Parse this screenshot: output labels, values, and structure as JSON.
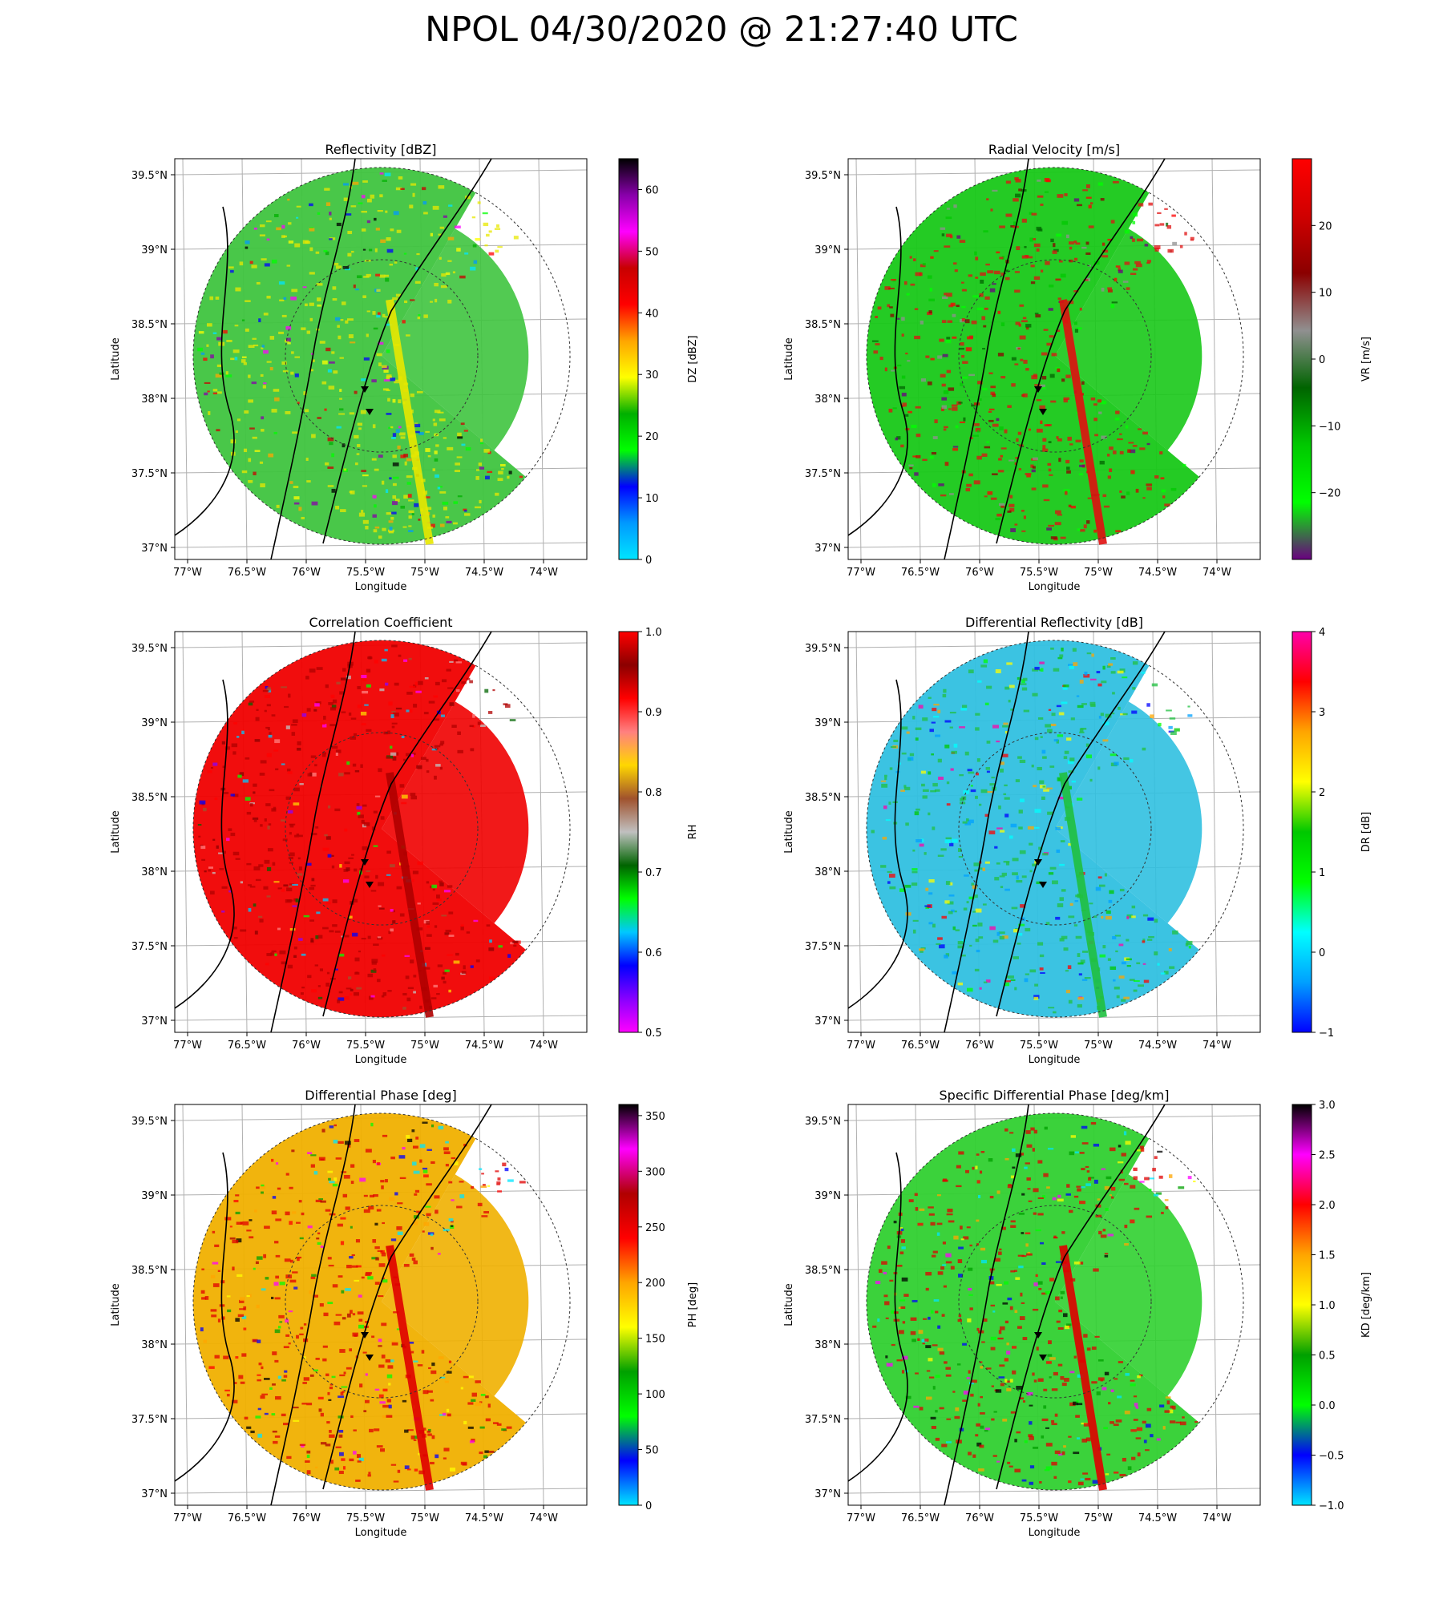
{
  "figure_title": "NPOL  04/30/2020 @ 21:27:40 UTC",
  "chart_data": [
    {
      "type": "heatmap",
      "title": "Reflectivity [dBZ]",
      "xlabel": "Longitude",
      "ylabel": "Latitude",
      "xticks": [
        "77°W",
        "76.5°W",
        "76°W",
        "75.5°W",
        "75°W",
        "74.5°W",
        "74°W"
      ],
      "yticks": [
        "39.5°N",
        "39°N",
        "38.5°N",
        "38°N",
        "37.5°N",
        "37°N"
      ],
      "colorbar_label": "DZ [dBZ]",
      "colorbar_ticks": [
        "0",
        "10",
        "20",
        "30",
        "40",
        "50",
        "60"
      ],
      "colorbar_range": [
        0,
        65
      ],
      "colormap": [
        "#00e5ff",
        "#0099ff",
        "#0000ff",
        "#00ff00",
        "#00b000",
        "#ffff00",
        "#ffa500",
        "#ff0000",
        "#c80000",
        "#ff00ff",
        "#8800aa",
        "#000000"
      ],
      "dominant_color": "#3fc43f",
      "accent_color": "#e8e800"
    },
    {
      "type": "heatmap",
      "title": "Radial Velocity [m/s]",
      "xlabel": "Longitude",
      "ylabel": "Latitude",
      "xticks": [
        "77°W",
        "76.5°W",
        "76°W",
        "75.5°W",
        "75°W",
        "74.5°W",
        "74°W"
      ],
      "yticks": [
        "39.5°N",
        "39°N",
        "38.5°N",
        "38°N",
        "37.5°N",
        "37°N"
      ],
      "colorbar_label": "VR [m/s]",
      "colorbar_ticks": [
        "−20",
        "−10",
        "0",
        "10",
        "20"
      ],
      "colorbar_range": [
        -30,
        30
      ],
      "colormap": [
        "#6a0080",
        "#00ff00",
        "#00c800",
        "#006400",
        "#909090",
        "#8b0000",
        "#d00000",
        "#ff0000"
      ],
      "dominant_color": "#18c818",
      "accent_color": "#e01010"
    },
    {
      "type": "heatmap",
      "title": "Correlation Coefficient",
      "xlabel": "Longitude",
      "ylabel": "Latitude",
      "xticks": [
        "77°W",
        "76.5°W",
        "76°W",
        "75.5°W",
        "75°W",
        "74.5°W",
        "74°W"
      ],
      "yticks": [
        "39.5°N",
        "39°N",
        "38.5°N",
        "38°N",
        "37.5°N",
        "37°N"
      ],
      "colorbar_label": "RH",
      "colorbar_ticks": [
        "0.5",
        "0.6",
        "0.7",
        "0.8",
        "0.9",
        "1.0"
      ],
      "colorbar_range": [
        0.5,
        1.0
      ],
      "colormap": [
        "#ff00ff",
        "#8800ff",
        "#0000ff",
        "#00c8ff",
        "#00ff00",
        "#006400",
        "#c0c0c0",
        "#a0522d",
        "#ffd700",
        "#ff8080",
        "#ff0000",
        "#8b0000",
        "#ff0000"
      ],
      "dominant_color": "#f00000",
      "accent_color": "#b00000"
    },
    {
      "type": "heatmap",
      "title": "Differential Reflectivity [dB]",
      "xlabel": "Longitude",
      "ylabel": "Latitude",
      "xticks": [
        "77°W",
        "76.5°W",
        "76°W",
        "75.5°W",
        "75°W",
        "74.5°W",
        "74°W"
      ],
      "yticks": [
        "39.5°N",
        "39°N",
        "38.5°N",
        "38°N",
        "37.5°N",
        "37°N"
      ],
      "colorbar_label": "DR [dB]",
      "colorbar_ticks": [
        "−1",
        "0",
        "1",
        "2",
        "3",
        "4"
      ],
      "colorbar_range": [
        -1,
        4
      ],
      "colormap": [
        "#0000ff",
        "#00a0ff",
        "#00ffff",
        "#00ff00",
        "#00c800",
        "#ffff00",
        "#ffa500",
        "#ff0000",
        "#ff00aa"
      ],
      "dominant_color": "#30c0e0",
      "accent_color": "#20c040"
    },
    {
      "type": "heatmap",
      "title": "Differential Phase [deg]",
      "xlabel": "Longitude",
      "ylabel": "Latitude",
      "xticks": [
        "77°W",
        "76.5°W",
        "76°W",
        "75.5°W",
        "75°W",
        "74.5°W",
        "74°W"
      ],
      "yticks": [
        "39.5°N",
        "39°N",
        "38.5°N",
        "38°N",
        "37.5°N",
        "37°N"
      ],
      "colorbar_label": "PH [deg]",
      "colorbar_ticks": [
        "0",
        "50",
        "100",
        "150",
        "200",
        "250",
        "300",
        "350"
      ],
      "colorbar_range": [
        0,
        360
      ],
      "colormap": [
        "#00e5ff",
        "#0000ff",
        "#00ff00",
        "#00a000",
        "#ffff00",
        "#ffa500",
        "#ff0000",
        "#b00000",
        "#ff00ff",
        "#000000"
      ],
      "dominant_color": "#f0b000",
      "accent_color": "#e00000"
    },
    {
      "type": "heatmap",
      "title": "Specific Differential Phase [deg/km]",
      "xlabel": "Longitude",
      "ylabel": "Latitude",
      "xticks": [
        "77°W",
        "76.5°W",
        "76°W",
        "75.5°W",
        "75°W",
        "74.5°W",
        "74°W"
      ],
      "yticks": [
        "39.5°N",
        "39°N",
        "38.5°N",
        "38°N",
        "37.5°N",
        "37°N"
      ],
      "colorbar_label": "KD [deg/km]",
      "colorbar_ticks": [
        "−1.0",
        "−0.5",
        "0.0",
        "0.5",
        "1.0",
        "1.5",
        "2.0",
        "2.5",
        "3.0"
      ],
      "colorbar_range": [
        -1.0,
        3.0
      ],
      "colormap": [
        "#00e5ff",
        "#0000ff",
        "#00ff00",
        "#00a000",
        "#ffff00",
        "#ffa500",
        "#ff0000",
        "#ff00ff",
        "#000000"
      ],
      "dominant_color": "#30d030",
      "accent_color": "#e00000"
    }
  ]
}
